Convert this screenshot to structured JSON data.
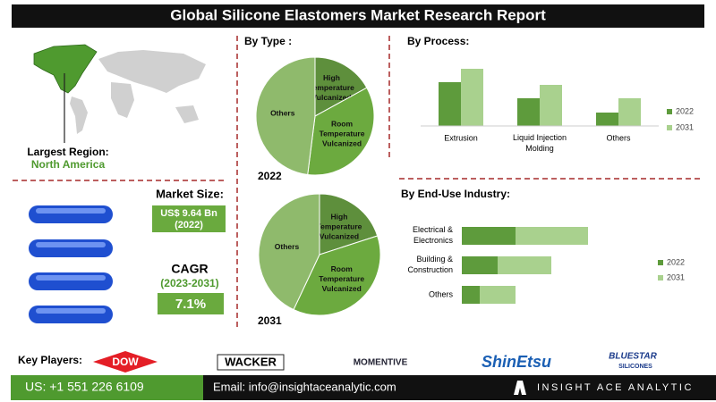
{
  "header": {
    "title": "Global Silicone Elastomers Market Research Report"
  },
  "region": {
    "label": "Largest Region:",
    "value": "North America"
  },
  "market_size": {
    "label": "Market Size:",
    "value": "US$ 9.64 Bn",
    "year": "(2022)"
  },
  "cagr": {
    "label": "CAGR",
    "period": "(2023-2031)",
    "value": "7.1%"
  },
  "sections": {
    "type": "By Type :",
    "process": "By Process:",
    "end_use": "By End-Use Industry:"
  },
  "key_players": {
    "label": "Key Players:",
    "names": [
      "DOW",
      "WACKER",
      "MOMENTIVE",
      "ShinEtsu",
      "BLUESTAR",
      "SILICONES"
    ]
  },
  "footer": {
    "phone": "US: +1 551 226 6109",
    "email": "Email: info@insightaceanalytic.com",
    "brand": "INSIGHT ACE ANALYTIC"
  },
  "chart_data": [
    {
      "type": "pie",
      "subtitle": "2022",
      "categories": [
        "High Temperature Vulcanized",
        "Room Temperature Vulcanized",
        "Others"
      ],
      "values": [
        17,
        35,
        48
      ],
      "colors": [
        "#5e8f3c",
        "#6caa3f",
        "#8fba6c"
      ]
    },
    {
      "type": "pie",
      "subtitle": "2031",
      "categories": [
        "High Temperature Vulcanized",
        "Room Temperature Vulcanized",
        "Others"
      ],
      "values": [
        20,
        37,
        43
      ],
      "colors": [
        "#5e8f3c",
        "#6caa3f",
        "#8fba6c"
      ]
    },
    {
      "type": "bar",
      "categories": [
        "Extrusion",
        "Liquid Injection Molding",
        "Others"
      ],
      "series": [
        {
          "name": "2022",
          "color": "#5e9b3c",
          "values": [
            49,
            31,
            15
          ]
        },
        {
          "name": "2031",
          "color": "#a9d18e",
          "values": [
            64,
            46,
            31
          ]
        }
      ]
    },
    {
      "type": "hbar_stacked",
      "categories": [
        "Electrical & Electronics",
        "Building & Construction",
        "Others"
      ],
      "series": [
        {
          "name": "2022",
          "color": "#5e9b3c",
          "values": [
            60,
            40,
            20
          ]
        },
        {
          "name": "2031",
          "color": "#a9d18e",
          "values": [
            81,
            60,
            40
          ]
        }
      ]
    }
  ]
}
